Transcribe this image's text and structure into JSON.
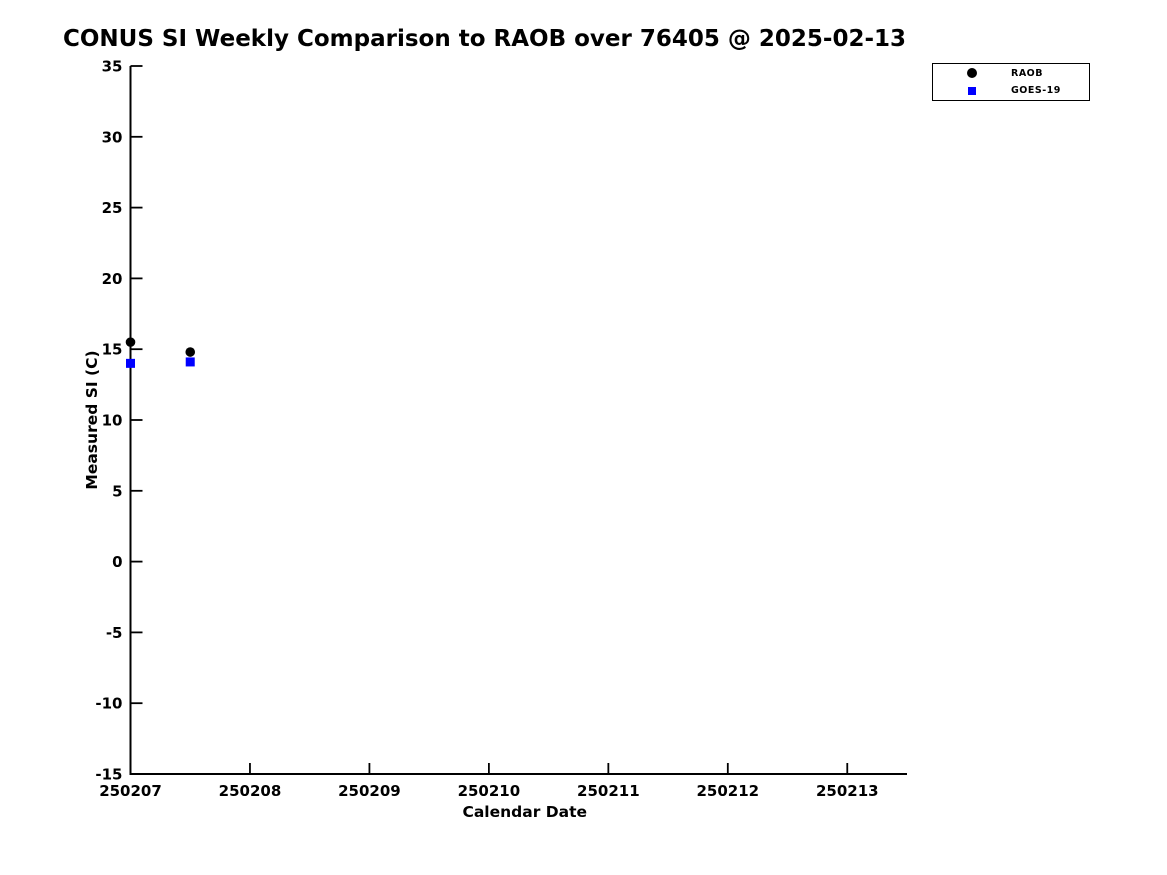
{
  "chart_data": {
    "type": "scatter",
    "title": "CONUS SI Weekly Comparison to RAOB over 76405 @ 2025-02-13",
    "xlabel": "Calendar Date",
    "ylabel": "Measured SI (C)",
    "xlim": [
      250207,
      250213.5
    ],
    "ylim": [
      -15,
      35
    ],
    "xticks": [
      250207,
      250208,
      250209,
      250210,
      250211,
      250212,
      250213
    ],
    "yticks": [
      -15,
      -10,
      -5,
      0,
      5,
      10,
      15,
      20,
      25,
      30,
      35
    ],
    "grid": false,
    "background": "#ffffff",
    "axis_color": "#000000",
    "legend_position": "top-right-outside",
    "series": [
      {
        "name": "RAOB",
        "marker": "circle",
        "color": "#000000",
        "points": [
          {
            "x": 250207.0,
            "y": 15.5
          },
          {
            "x": 250207.5,
            "y": 14.8
          }
        ]
      },
      {
        "name": "GOES-19",
        "marker": "square",
        "color": "#0000ff",
        "points": [
          {
            "x": 250207.0,
            "y": 14.0
          },
          {
            "x": 250207.5,
            "y": 14.1
          }
        ]
      }
    ]
  }
}
